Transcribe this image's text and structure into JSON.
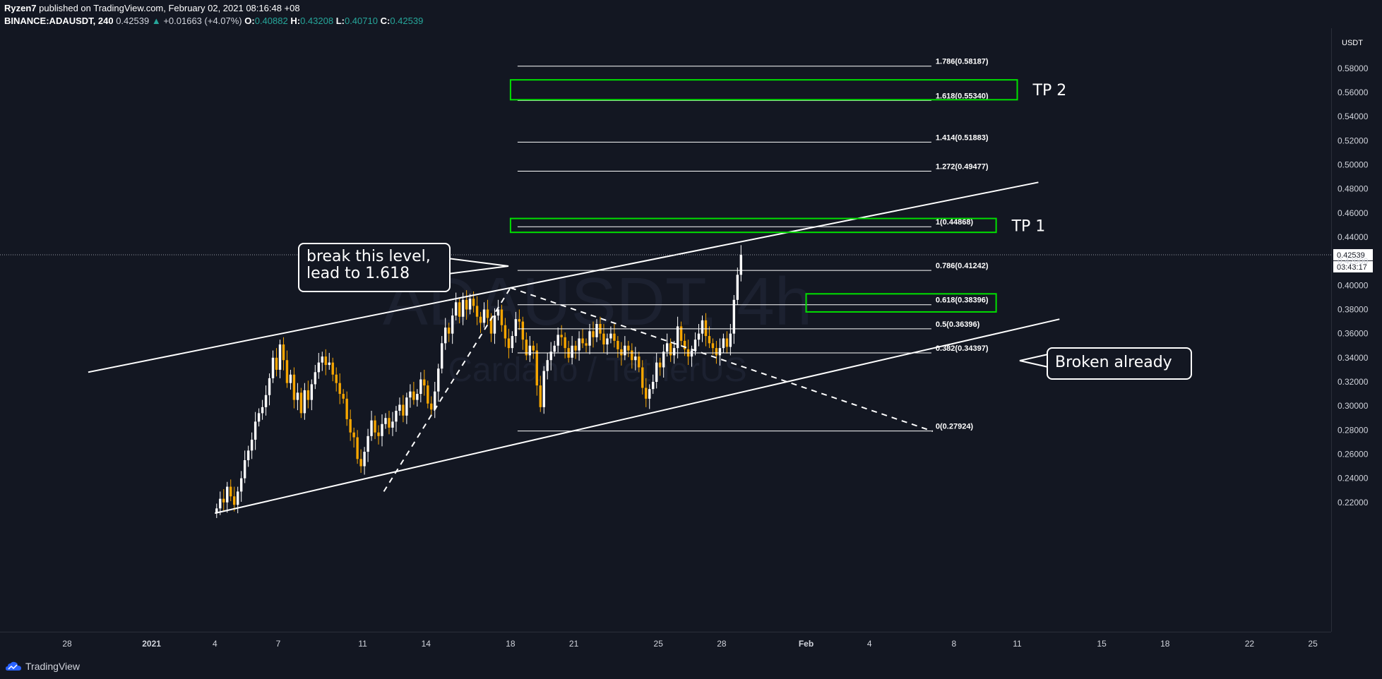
{
  "header": {
    "publisher": "Ryzen7",
    "published_text": "published on TradingView.com, February 02, 2021 08:16:48 +08",
    "symbol": "BINANCE:ADAUSDT, 240",
    "last_price": "0.42539",
    "change_arrow": "▲",
    "change": "+0.01663 (+4.07%)",
    "o_label": "O:",
    "o_value": "0.40882",
    "h_label": "H:",
    "h_value": "0.43208",
    "l_label": "L:",
    "l_value": "0.40710",
    "c_label": "C:",
    "c_value": "0.42539"
  },
  "footer": {
    "brand": "TradingView"
  },
  "colors": {
    "background": "#131722",
    "bull_candle": "#ffffff",
    "bear_candle": "#f7a600",
    "fib_box": "#00e000",
    "lines": "#ffffff",
    "axis_text": "#d1d4dc"
  },
  "chart_data": {
    "type": "candlestick",
    "title": "",
    "watermark": {
      "symbol": "ADAUSDT, 4h",
      "description": "Cardano / TetherUS"
    },
    "y_axis": {
      "unit": "USDT",
      "range": [
        0.21,
        0.59
      ],
      "ticks": [
        "0.22000",
        "0.24000",
        "0.26000",
        "0.28000",
        "0.30000",
        "0.32000",
        "0.34000",
        "0.36000",
        "0.38000",
        "0.40000",
        "0.42000",
        "0.44000",
        "0.46000",
        "0.48000",
        "0.50000",
        "0.52000",
        "0.54000",
        "0.56000",
        "0.58000"
      ]
    },
    "x_axis": {
      "start": "2020-12-26",
      "end": "2021-02-25",
      "ticks": [
        {
          "date": "2020-12-28",
          "label": "28"
        },
        {
          "date": "2021-01-01",
          "label": "2021"
        },
        {
          "date": "2021-01-04",
          "label": "4"
        },
        {
          "date": "2021-01-07",
          "label": "7"
        },
        {
          "date": "2021-01-11",
          "label": "11"
        },
        {
          "date": "2021-01-14",
          "label": "14"
        },
        {
          "date": "2021-01-18",
          "label": "18"
        },
        {
          "date": "2021-01-21",
          "label": "21"
        },
        {
          "date": "2021-01-25",
          "label": "25"
        },
        {
          "date": "2021-01-28",
          "label": "28"
        },
        {
          "date": "2021-02-01",
          "label": "Feb"
        },
        {
          "date": "2021-02-04",
          "label": "4"
        },
        {
          "date": "2021-02-08",
          "label": "8"
        },
        {
          "date": "2021-02-11",
          "label": "11"
        },
        {
          "date": "2021-02-15",
          "label": "15"
        },
        {
          "date": "2021-02-18",
          "label": "18"
        },
        {
          "date": "2021-02-22",
          "label": "22"
        },
        {
          "date": "2021-02-25",
          "label": "25"
        }
      ]
    },
    "current_price": {
      "value": 0.42539,
      "label": "0.42539",
      "countdown": "03:43:17"
    },
    "fib_extension": {
      "start_date": "2021-01-18",
      "label_date": "2021-02-07",
      "end_date": "2021-02-07",
      "levels": [
        {
          "ratio": "1.786",
          "price": 0.58187,
          "label": "1.786(0.58187)"
        },
        {
          "ratio": "1.618",
          "price": 0.5534,
          "label": "1.618(0.55340)"
        },
        {
          "ratio": "1.414",
          "price": 0.51883,
          "label": "1.414(0.51883)"
        },
        {
          "ratio": "1.272",
          "price": 0.49477,
          "label": "1.272(0.49477)"
        },
        {
          "ratio": "1",
          "price": 0.44868,
          "label": "1(0.44868)"
        },
        {
          "ratio": "0.786",
          "price": 0.41242,
          "label": "0.786(0.41242)"
        },
        {
          "ratio": "0.618",
          "price": 0.38396,
          "label": "0.618(0.38396)"
        },
        {
          "ratio": "0.5",
          "price": 0.36396,
          "label": "0.5(0.36396)"
        },
        {
          "ratio": "0.382",
          "price": 0.34397,
          "label": "0.382(0.34397)"
        },
        {
          "ratio": "0",
          "price": 0.27924,
          "label": "0(0.27924)"
        }
      ]
    },
    "highlight_boxes": [
      {
        "from": "2021-01-18",
        "to": "2021-02-11",
        "top": 0.5705,
        "bottom": 0.554,
        "label": "TP 2"
      },
      {
        "from": "2021-01-18",
        "to": "2021-02-10",
        "top": 0.4555,
        "bottom": 0.444,
        "label": "TP 1"
      },
      {
        "from": "2021-02-01",
        "to": "2021-02-10",
        "top": 0.393,
        "bottom": 0.378,
        "label": ""
      }
    ],
    "trendlines": [
      {
        "from": [
          "2020-12-29",
          0.328
        ],
        "to": [
          "2021-02-12",
          0.4855
        ],
        "dashed": false
      },
      {
        "from": [
          "2021-01-04",
          0.211
        ],
        "to": [
          "2021-02-13",
          0.372
        ],
        "dashed": false
      },
      {
        "from": [
          "2021-01-12",
          0.229
        ],
        "to": [
          "2021-01-18",
          0.398
        ],
        "dashed": true
      },
      {
        "from": [
          "2021-01-18",
          0.398
        ],
        "to": [
          "2021-02-07",
          0.279
        ],
        "dashed": true
      }
    ],
    "annotations": [
      {
        "text": "break this level,\nlead to 1.618"
      },
      {
        "text": "Broken already"
      },
      {
        "text": "TP 2"
      },
      {
        "text": "TP 1"
      }
    ],
    "candle_period_hours": 4,
    "candles_start": "2021-01-04",
    "candles_close": [
      0.215,
      0.223,
      0.22,
      0.233,
      0.225,
      0.218,
      0.229,
      0.24,
      0.255,
      0.263,
      0.272,
      0.287,
      0.294,
      0.299,
      0.309,
      0.323,
      0.34,
      0.33,
      0.351,
      0.338,
      0.319,
      0.326,
      0.305,
      0.311,
      0.294,
      0.313,
      0.305,
      0.318,
      0.328,
      0.336,
      0.341,
      0.334,
      0.336,
      0.326,
      0.319,
      0.31,
      0.306,
      0.289,
      0.278,
      0.274,
      0.256,
      0.25,
      0.262,
      0.275,
      0.288,
      0.278,
      0.275,
      0.285,
      0.29,
      0.282,
      0.287,
      0.296,
      0.301,
      0.292,
      0.307,
      0.312,
      0.305,
      0.31,
      0.322,
      0.317,
      0.302,
      0.297,
      0.312,
      0.331,
      0.352,
      0.365,
      0.36,
      0.375,
      0.386,
      0.374,
      0.388,
      0.38,
      0.389,
      0.383,
      0.374,
      0.369,
      0.38,
      0.373,
      0.36,
      0.375,
      0.38,
      0.367,
      0.356,
      0.348,
      0.358,
      0.372,
      0.37,
      0.355,
      0.342,
      0.35,
      0.346,
      0.317,
      0.299,
      0.329,
      0.338,
      0.345,
      0.35,
      0.359,
      0.357,
      0.348,
      0.34,
      0.35,
      0.346,
      0.356,
      0.352,
      0.35,
      0.362,
      0.357,
      0.368,
      0.36,
      0.351,
      0.356,
      0.36,
      0.354,
      0.347,
      0.342,
      0.35,
      0.346,
      0.338,
      0.341,
      0.332,
      0.315,
      0.306,
      0.314,
      0.32,
      0.336,
      0.332,
      0.345,
      0.352,
      0.342,
      0.348,
      0.366,
      0.354,
      0.347,
      0.341,
      0.346,
      0.355,
      0.36,
      0.371,
      0.358,
      0.352,
      0.348,
      0.342,
      0.348,
      0.356,
      0.349,
      0.36,
      0.388,
      0.4088,
      0.4254
    ]
  }
}
